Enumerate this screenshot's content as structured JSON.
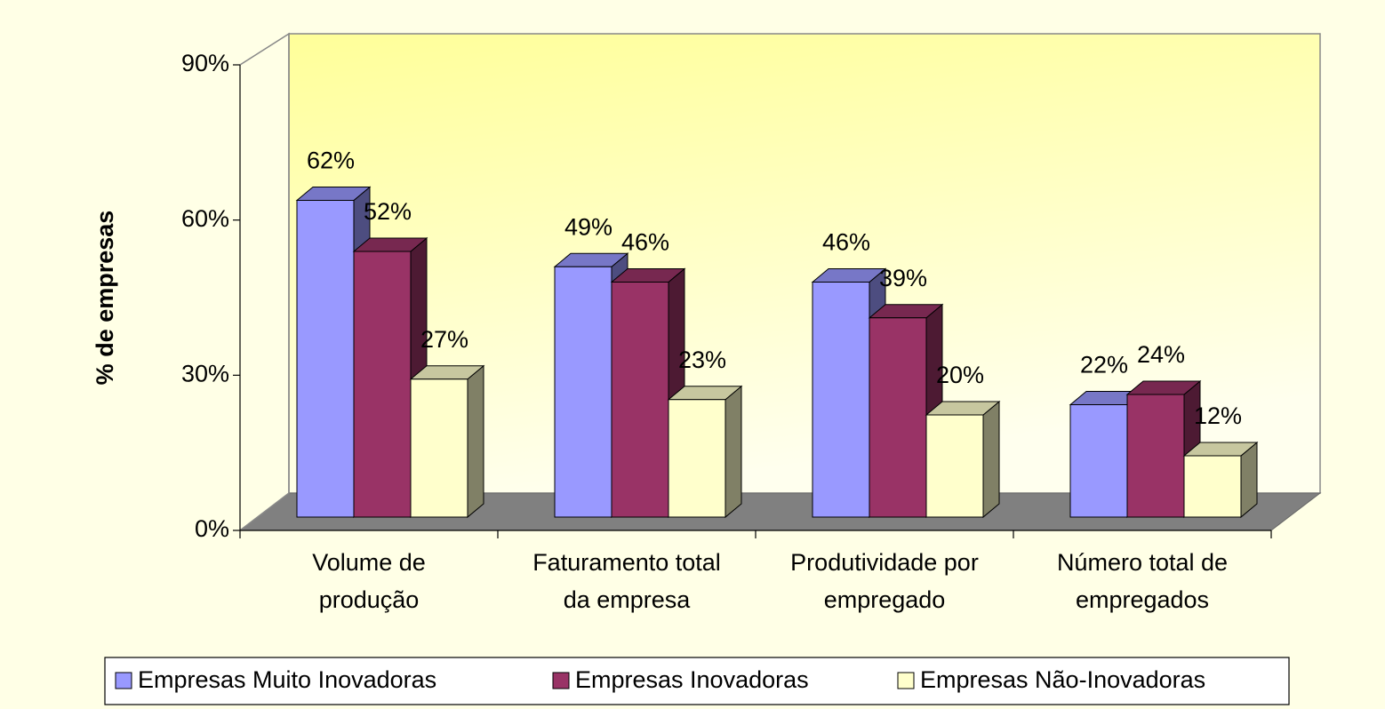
{
  "chart_data": {
    "type": "bar3d",
    "ylabel": "% de empresas",
    "categories": [
      [
        "Volume de",
        "produção"
      ],
      [
        "Faturamento total",
        "da empresa"
      ],
      [
        "Produtividade por",
        "empregado"
      ],
      [
        "Número total de",
        "empregados"
      ]
    ],
    "series": [
      {
        "name": "Empresas Muito Inovadoras",
        "color": "#9999ff",
        "values": [
          62,
          49,
          46,
          22
        ],
        "value_labels": [
          "62%",
          "49%",
          "46%",
          "22%"
        ]
      },
      {
        "name": "Empresas Inovadoras",
        "color": "#993366",
        "values": [
          52,
          46,
          39,
          24
        ],
        "value_labels": [
          "52%",
          "46%",
          "39%",
          "24%"
        ]
      },
      {
        "name": "Empresas Não-Inovadoras",
        "color": "#ffffcc",
        "values": [
          27,
          23,
          20,
          12
        ],
        "value_labels": [
          "27%",
          "23%",
          "20%",
          "12%"
        ]
      }
    ],
    "ylim": [
      0,
      90
    ],
    "yticks": [
      {
        "value": 0,
        "label": "0%"
      },
      {
        "value": 30,
        "label": "30%"
      },
      {
        "value": 60,
        "label": "60%"
      },
      {
        "value": 90,
        "label": "90%"
      }
    ],
    "legend": "bottom"
  }
}
